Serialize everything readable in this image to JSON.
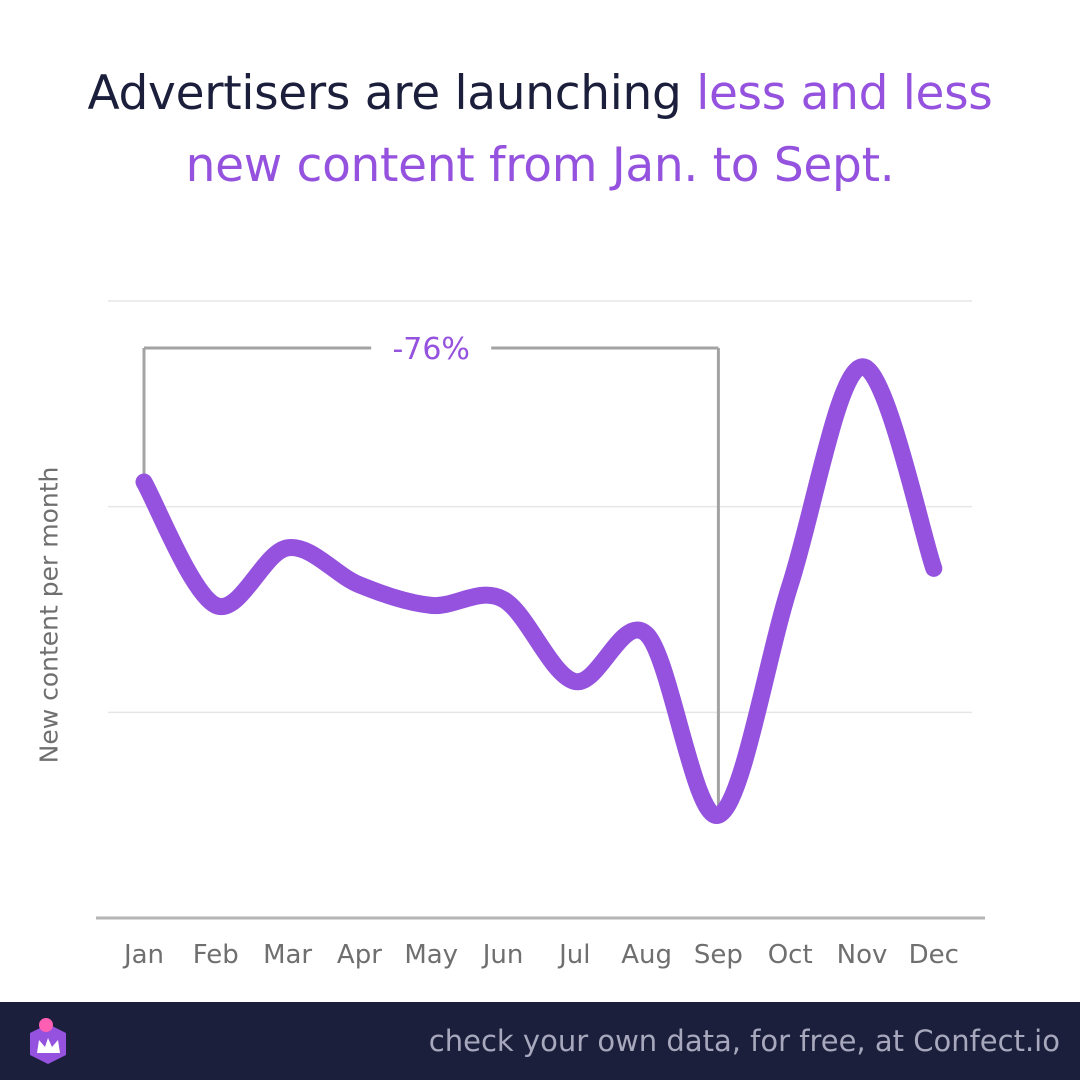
{
  "title": {
    "dark": "Advertisers are launching ",
    "accent_line1": "less and less",
    "accent_line2": "new content from Jan. to Sept."
  },
  "chart_data": {
    "type": "line",
    "title": "Advertisers are launching less and less new content from Jan. to Sept.",
    "xlabel": "",
    "ylabel": "New content per month",
    "categories": [
      "Jan",
      "Feb",
      "Mar",
      "Apr",
      "May",
      "Jun",
      "Jul",
      "Aug",
      "Sep",
      "Oct",
      "Nov",
      "Dec"
    ],
    "series": [
      {
        "values": [
          2.12,
          1.52,
          1.8,
          1.62,
          1.52,
          1.55,
          1.15,
          1.38,
          0.5,
          1.62,
          2.68,
          1.7
        ]
      }
    ],
    "ylim": [
      0,
      3
    ],
    "grid": true,
    "yticks_labeled": false,
    "annotation": {
      "text": "-76%",
      "from": "Jan",
      "to": "Sep"
    },
    "colors": {
      "line": "#9452de",
      "grid": "#e6e6e6",
      "axis": "#b5b5b5",
      "bracket": "#a3a3a3"
    }
  },
  "footer": {
    "text": "check your own data, for free, at Confect.io",
    "background": "#1c1f3b"
  }
}
